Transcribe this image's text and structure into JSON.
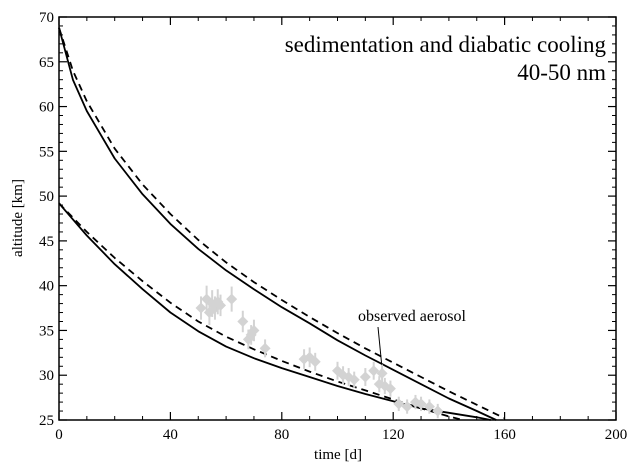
{
  "chart_data": {
    "type": "line",
    "title": [
      "sedimentation and diabatic cooling",
      "40-50 nm"
    ],
    "xlabel": "time [d]",
    "ylabel": "altitude [km]",
    "xlim": [
      0,
      200
    ],
    "ylim": [
      25,
      70
    ],
    "xticks": [
      0,
      40,
      80,
      120,
      160,
      200
    ],
    "yticks": [
      25,
      30,
      35,
      40,
      45,
      50,
      55,
      60,
      65,
      70
    ],
    "grid": false,
    "annotation": {
      "text": "observed aerosol",
      "arrow_to": [
        113,
        30.5
      ]
    },
    "series": [
      {
        "style": "solid",
        "x": [
          0,
          5,
          10,
          20,
          30,
          40,
          50,
          60,
          70,
          80,
          90,
          100,
          110,
          120,
          130,
          140,
          150,
          157
        ],
        "y": [
          68.8,
          63.0,
          59.5,
          54.2,
          50.2,
          46.9,
          44.1,
          41.7,
          39.6,
          37.6,
          35.8,
          33.9,
          32.2,
          30.6,
          29.0,
          27.4,
          26.0,
          25.0
        ]
      },
      {
        "style": "dashed",
        "x": [
          0,
          5,
          10,
          20,
          30,
          40,
          50,
          60,
          70,
          80,
          90,
          100,
          110,
          120,
          130,
          140,
          150,
          160
        ],
        "y": [
          68.8,
          64.0,
          60.6,
          55.3,
          51.3,
          48.0,
          45.1,
          42.6,
          40.4,
          38.4,
          36.5,
          34.7,
          33.0,
          31.4,
          29.8,
          28.2,
          26.7,
          25.2
        ]
      },
      {
        "style": "solid",
        "x": [
          0,
          10,
          20,
          30,
          40,
          50,
          60,
          70,
          80,
          90,
          100,
          110,
          120,
          130,
          140,
          150,
          155
        ],
        "y": [
          49.2,
          45.6,
          42.4,
          39.6,
          37.0,
          34.9,
          33.2,
          31.9,
          30.8,
          29.8,
          28.8,
          27.9,
          27.1,
          26.3,
          25.8,
          25.3,
          25.0
        ]
      },
      {
        "style": "dashed",
        "x": [
          0,
          10,
          20,
          30,
          40,
          50,
          60,
          70,
          80,
          90,
          100,
          110,
          120,
          130,
          140,
          145
        ],
        "y": [
          49.2,
          46.0,
          43.1,
          40.5,
          38.1,
          36.0,
          34.3,
          32.9,
          31.6,
          30.4,
          29.3,
          28.3,
          27.3,
          26.3,
          25.4,
          25.0
        ]
      }
    ],
    "observations": {
      "x": [
        51,
        53,
        54,
        55,
        56,
        57,
        58,
        62,
        66,
        68,
        69,
        70,
        74,
        88,
        90,
        92,
        100,
        102,
        104,
        106,
        110,
        113,
        115,
        116,
        117,
        119,
        122,
        125,
        128,
        130,
        133,
        136
      ],
      "y": [
        37.5,
        38.5,
        37.0,
        38.0,
        37.5,
        38.2,
        37.8,
        38.5,
        36.0,
        34.0,
        34.5,
        35.0,
        33.0,
        31.8,
        32.0,
        31.5,
        30.5,
        30.0,
        29.8,
        29.5,
        29.8,
        30.5,
        29.0,
        30.2,
        28.8,
        28.5,
        26.8,
        26.5,
        27.0,
        26.8,
        26.5,
        26.0
      ],
      "err": [
        1.3,
        1.5,
        1.4,
        1.5,
        1.3,
        1.4,
        1.2,
        1.4,
        1.2,
        1.1,
        1.1,
        1.2,
        1.0,
        1.1,
        1.1,
        1.0,
        1.0,
        1.0,
        1.0,
        0.9,
        1.0,
        1.0,
        0.9,
        1.0,
        0.9,
        0.9,
        0.8,
        0.8,
        0.8,
        0.8,
        0.8,
        0.8
      ],
      "color": "#d3d3d3"
    }
  }
}
